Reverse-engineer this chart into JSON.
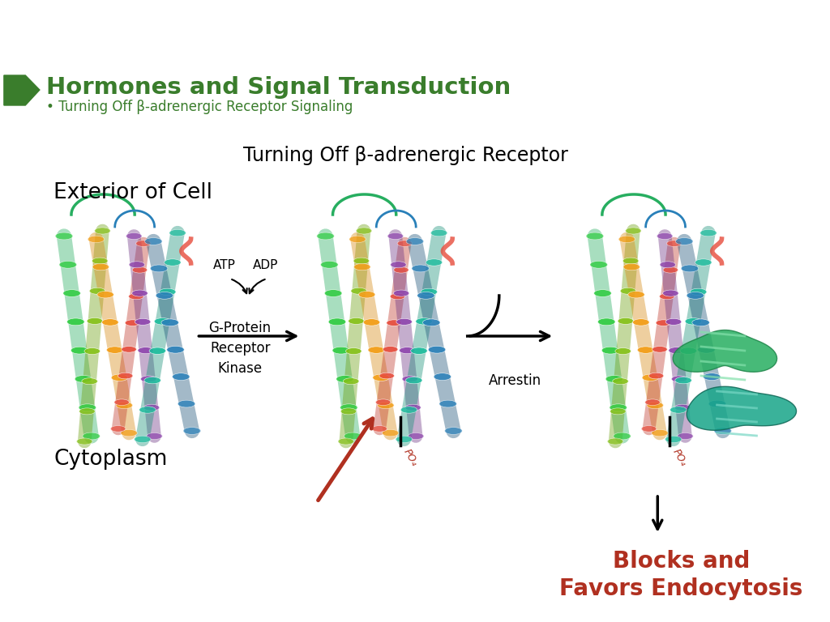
{
  "title": "Hormones and Signal Transduction",
  "subtitle": "• Turning Off β-adrenergic Receptor Signaling",
  "main_label": "Turning Off β-adrenergic Receptor",
  "exterior_label": "Exterior of Cell",
  "cytoplasm_label": "Cytoplasm",
  "atp_label": "ATP",
  "adp_label": "ADP",
  "gprotein_label": "G-Protein\nReceptor\nKinase",
  "arrestin_label": "Arrestin",
  "blocks_label": "Blocks and\nFavors Endocytosis",
  "title_color": "#3a7d2c",
  "subtitle_color": "#3a7d2c",
  "main_label_color": "#000000",
  "exterior_color": "#000000",
  "cytoplasm_color": "#000000",
  "blocks_color": "#b03020",
  "arrow_color": "#000000",
  "red_arrow_color": "#b03020",
  "bg_color": "#ffffff",
  "chevron_color": "#3a7d2c"
}
